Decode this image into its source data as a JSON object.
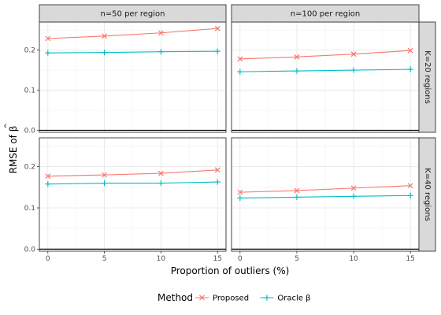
{
  "chart_data": {
    "type": "line",
    "xlabel": "Proportion of outliers (%)",
    "ylabel_text": "RMSE of β",
    "ylabel_hat": "^",
    "x": [
      0,
      5,
      10,
      15
    ],
    "x_ticks": [
      "0",
      "5",
      "10",
      "15"
    ],
    "y_ticks": [
      "0.0",
      "0.1",
      "0.2"
    ],
    "ylim": [
      -0.005,
      0.27
    ],
    "xlim": [
      -0.75,
      15.75
    ],
    "grid": true,
    "hline": 0,
    "legend": {
      "title": "Method",
      "position": "bottom",
      "entries": [
        {
          "label": "Proposed",
          "color": "#F8766D",
          "marker": "x"
        },
        {
          "label": "Oracle β",
          "color": "#00BFC4",
          "marker": "+"
        }
      ]
    },
    "col_strips": [
      "n=50 per region",
      "n=100 per region"
    ],
    "row_strips": [
      "K=20 regions",
      "K=40 regions"
    ],
    "panels": [
      {
        "col": 0,
        "row": 0,
        "series": [
          {
            "name": "Proposed",
            "values": [
              0.229,
              0.235,
              0.243,
              0.254
            ]
          },
          {
            "name": "Oracle β",
            "values": [
              0.193,
              0.194,
              0.196,
              0.197
            ]
          }
        ]
      },
      {
        "col": 1,
        "row": 0,
        "series": [
          {
            "name": "Proposed",
            "values": [
              0.178,
              0.183,
              0.19,
              0.199
            ]
          },
          {
            "name": "Oracle β",
            "values": [
              0.146,
              0.148,
              0.15,
              0.152
            ]
          }
        ]
      },
      {
        "col": 0,
        "row": 1,
        "series": [
          {
            "name": "Proposed",
            "values": [
              0.177,
              0.18,
              0.184,
              0.192
            ]
          },
          {
            "name": "Oracle β",
            "values": [
              0.158,
              0.16,
              0.16,
              0.163
            ]
          }
        ]
      },
      {
        "col": 1,
        "row": 1,
        "series": [
          {
            "name": "Proposed",
            "values": [
              0.138,
              0.142,
              0.148,
              0.154
            ]
          },
          {
            "name": "Oracle β",
            "values": [
              0.124,
              0.126,
              0.128,
              0.13
            ]
          }
        ]
      }
    ]
  }
}
